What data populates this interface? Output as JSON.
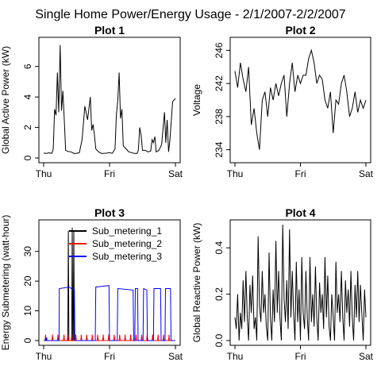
{
  "figure": {
    "title": "Single Home Power/Energy Usage - 2/1/2007-2/2/2007"
  },
  "chart_data": [
    {
      "type": "line",
      "title": "Plot 1",
      "xlabel": "",
      "ylabel": "Global Active Power (kW)",
      "x_ticks": [
        "Thu",
        "Fri",
        "Sat"
      ],
      "y_ticks": [
        0,
        2,
        4,
        6
      ],
      "xlim": [
        0,
        48
      ],
      "ylim": [
        0,
        7.6
      ],
      "grid": false,
      "series": [
        {
          "x": [
            0,
            1,
            2,
            3,
            3.5,
            4,
            4.5,
            5,
            5.5,
            6,
            6.5,
            7,
            7.5,
            8,
            9,
            10,
            11,
            12,
            13,
            14,
            15,
            16,
            17,
            17.5,
            18,
            18.5,
            19,
            19.5,
            20,
            21,
            22,
            23,
            24,
            25,
            26,
            26.5,
            27,
            27.5,
            28,
            28.5,
            29,
            30,
            31,
            32,
            33,
            34,
            34.5,
            35,
            35.5,
            36,
            37,
            38,
            39,
            39.5,
            40,
            40.5,
            41,
            42,
            43,
            44,
            44.5,
            45,
            45.5,
            46,
            47,
            48
          ],
          "y": [
            0.32,
            0.3,
            0.34,
            0.3,
            0.6,
            3.2,
            2.8,
            5.6,
            3.0,
            7.4,
            3.1,
            4.4,
            2.6,
            0.5,
            0.42,
            0.4,
            0.3,
            0.3,
            0.35,
            1.2,
            3.4,
            2.5,
            4.0,
            1.8,
            2.2,
            1.5,
            0.6,
            0.5,
            0.4,
            0.3,
            0.3,
            0.32,
            0.35,
            0.3,
            0.6,
            2.8,
            3.8,
            5.6,
            2.6,
            3.2,
            0.8,
            0.6,
            0.4,
            0.35,
            0.3,
            0.3,
            0.5,
            2.0,
            1.5,
            0.5,
            0.5,
            0.4,
            0.45,
            1.2,
            1.0,
            1.4,
            0.4,
            0.5,
            0.9,
            3.0,
            1.0,
            2.5,
            0.4,
            1.2,
            3.7,
            3.9
          ]
        }
      ]
    },
    {
      "type": "line",
      "title": "Plot 2",
      "xlabel": "",
      "ylabel": "Voltage",
      "x_ticks": [
        "Thu",
        "Fri",
        "Sat"
      ],
      "y_ticks": [
        234,
        238,
        242,
        246
      ],
      "xlim": [
        0,
        48
      ],
      "ylim": [
        233,
        247
      ],
      "grid": false,
      "series": [
        {
          "x": [
            0,
            1,
            2,
            3,
            4,
            5,
            6,
            7,
            8,
            9,
            10,
            11,
            12,
            13,
            14,
            15,
            16,
            17,
            18,
            19,
            20,
            21,
            22,
            23,
            24,
            25,
            26,
            27,
            28,
            29,
            30,
            31,
            32,
            33,
            34,
            35,
            36,
            37,
            38,
            39,
            40,
            41,
            42,
            43,
            44,
            45,
            46,
            47,
            48
          ],
          "y": [
            243.5,
            241.5,
            244.5,
            242.5,
            241,
            244,
            237,
            239,
            236,
            234,
            240,
            241,
            238,
            241.5,
            240,
            242,
            240.5,
            242,
            243,
            238,
            242,
            244.5,
            241,
            243,
            242,
            243,
            243,
            245,
            246,
            244.5,
            242,
            243,
            242.5,
            240,
            239,
            241,
            236,
            240,
            239.5,
            242,
            243,
            241,
            238,
            239,
            241,
            238.5,
            240,
            239,
            240
          ]
        }
      ]
    },
    {
      "type": "line",
      "title": "Plot 3",
      "xlabel": "",
      "ylabel": "Energy Submetering (watt-hour)",
      "x_ticks": [
        "Thu",
        "Fri",
        "Sat"
      ],
      "y_ticks": [
        0,
        10,
        20,
        30
      ],
      "xlim": [
        0,
        48
      ],
      "ylim": [
        0,
        39
      ],
      "grid": false,
      "legend": "top-left",
      "series": [
        {
          "name": "Sub_metering_1",
          "color": "#000000",
          "x": [
            0,
            8.8,
            9,
            9.2,
            9.4,
            9.6,
            10.2,
            10.4,
            10.6,
            10.8,
            11,
            11.2,
            48
          ],
          "y": [
            0,
            0,
            37,
            0,
            0,
            0,
            0,
            38,
            0,
            0,
            37,
            0,
            0
          ]
        },
        {
          "name": "Sub_metering_2",
          "color": "#ff0000",
          "x": [
            0,
            0.5,
            0.7,
            0.9,
            3,
            3.2,
            3.4,
            5,
            5.2,
            5.4,
            7.2,
            7.4,
            7.6,
            8.6,
            8.8,
            9,
            10,
            10.2,
            10.4,
            11.5,
            11.7,
            11.9,
            13.5,
            13.7,
            13.9,
            15.5,
            15.7,
            15.9,
            17.5,
            17.7,
            17.9,
            19.5,
            19.7,
            19.9,
            21.5,
            21.7,
            21.9,
            23.5,
            23.7,
            23.9,
            25.5,
            25.7,
            25.9,
            27.5,
            27.7,
            27.9,
            29.5,
            29.7,
            29.9,
            31.5,
            31.7,
            31.9,
            33.5,
            33.7,
            33.9,
            35.5,
            35.7,
            35.9,
            37.5,
            37.7,
            37.9,
            39.5,
            39.7,
            39.9,
            41.5,
            41.7,
            41.9,
            43.5,
            43.7,
            43.9,
            45.5,
            45.7,
            45.9,
            47.5,
            48
          ],
          "y": [
            0,
            0,
            2,
            0,
            0,
            2,
            0,
            0,
            2,
            0,
            0,
            2,
            0,
            0,
            2,
            0,
            0,
            2,
            0,
            0,
            2,
            0,
            0,
            2,
            0,
            0,
            2,
            0,
            0,
            2,
            0,
            0,
            2,
            0,
            0,
            2,
            0,
            0,
            2,
            0,
            0,
            2,
            0,
            0,
            2,
            0,
            0,
            2,
            0,
            0,
            2,
            0,
            0,
            2,
            0,
            0,
            2,
            0,
            0,
            2,
            0,
            0,
            2,
            0,
            0,
            2,
            0,
            0,
            2,
            0,
            0,
            2,
            0,
            0,
            0
          ]
        },
        {
          "name": "Sub_metering_3",
          "color": "#0000ff",
          "x": [
            0,
            0.6,
            0.8,
            0.9,
            1.1,
            1.2,
            5.6,
            5.7,
            9.5,
            10,
            11.2,
            11.4,
            18.8,
            19,
            23.8,
            24,
            26.8,
            27,
            32.6,
            32.8,
            33.2,
            33.4,
            34.2,
            34.4,
            36.2,
            36.4,
            37.6,
            37.8,
            40,
            40.2,
            42.6,
            42.8,
            44.2,
            44.4,
            46.2,
            46.4,
            48
          ],
          "y": [
            0,
            0,
            1,
            0,
            1,
            0,
            0,
            17.5,
            18,
            17.5,
            17,
            0,
            0,
            18,
            18.5,
            0,
            0,
            17.5,
            17,
            0,
            0,
            17.5,
            17.5,
            0,
            0,
            17.5,
            17,
            0,
            0,
            17.5,
            17.5,
            0,
            0,
            17.5,
            17.5,
            0,
            0
          ]
        }
      ]
    },
    {
      "type": "line",
      "title": "Plot 4",
      "xlabel": "",
      "ylabel": "Global Reactive Power (kW)",
      "x_ticks": [
        "Thu",
        "Fri",
        "Sat"
      ],
      "y_ticks": [
        0.0,
        0.2,
        0.4
      ],
      "xlim": [
        0,
        48
      ],
      "ylim": [
        0,
        0.5
      ],
      "grid": false,
      "series": [
        {
          "x": [
            0,
            0.5,
            1,
            1.5,
            2,
            2.5,
            3,
            3.5,
            4,
            4.5,
            5,
            5.5,
            6,
            6.5,
            7,
            7.5,
            8,
            8.5,
            9,
            9.5,
            10,
            10.5,
            11,
            11.5,
            12,
            12.5,
            13,
            13.5,
            14,
            14.5,
            15,
            15.5,
            16,
            16.5,
            17,
            17.5,
            18,
            18.5,
            19,
            19.5,
            20,
            20.5,
            21,
            21.5,
            22,
            22.5,
            23,
            23.5,
            24,
            24.5,
            25,
            25.5,
            26,
            26.5,
            27,
            27.5,
            28,
            28.5,
            29,
            29.5,
            30,
            30.5,
            31,
            31.5,
            32,
            32.5,
            33,
            33.5,
            34,
            34.5,
            35,
            35.5,
            36,
            36.5,
            37,
            37.5,
            38,
            38.5,
            39,
            39.5,
            40,
            40.5,
            41,
            41.5,
            42,
            42.5,
            43,
            43.5,
            44,
            44.5,
            45,
            45.5,
            46,
            46.5,
            47,
            47.5,
            48
          ],
          "y": [
            0.1,
            0.05,
            0.2,
            0.0,
            0.12,
            0.05,
            0.26,
            0.08,
            0.3,
            0.1,
            0.0,
            0.24,
            0.12,
            0.28,
            0.05,
            0.1,
            0.0,
            0.45,
            0.15,
            0.08,
            0.3,
            0.12,
            0.2,
            0.06,
            0.0,
            0.38,
            0.1,
            0.0,
            0.22,
            0.08,
            0.43,
            0.12,
            0.3,
            0.1,
            0.0,
            0.5,
            0.18,
            0.08,
            0.26,
            0.05,
            0.48,
            0.1,
            0.3,
            0.12,
            0.0,
            0.34,
            0.08,
            0.22,
            0.0,
            0.36,
            0.12,
            0.05,
            0.3,
            0.1,
            0.0,
            0.36,
            0.08,
            0.2,
            0.06,
            0.32,
            0.1,
            0.0,
            0.25,
            0.12,
            0.2,
            0.05,
            0.36,
            0.1,
            0.28,
            0.06,
            0.0,
            0.2,
            0.1,
            0.0,
            0.34,
            0.12,
            0.2,
            0.08,
            0.3,
            0.1,
            0.0,
            0.26,
            0.12,
            0.22,
            0.06,
            0.3,
            0.1,
            0.0,
            0.24,
            0.1,
            0.3,
            0.08,
            0.24,
            0.12,
            0.0,
            0.22,
            0.1
          ]
        }
      ]
    }
  ]
}
